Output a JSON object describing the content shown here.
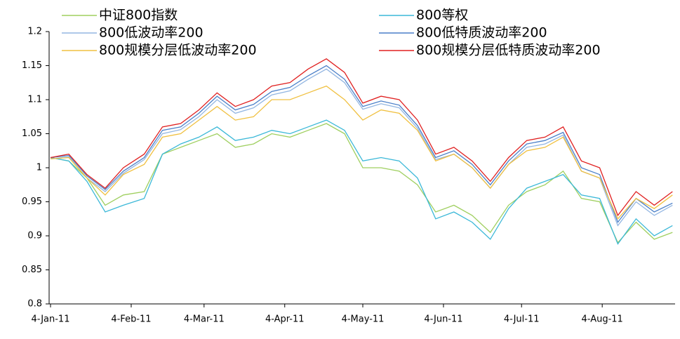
{
  "chart_data": {
    "type": "line",
    "x": [
      "2011-01-04",
      "2011-01-11",
      "2011-01-18",
      "2011-01-25",
      "2011-02-01",
      "2011-02-09",
      "2011-02-16",
      "2011-02-23",
      "2011-03-02",
      "2011-03-09",
      "2011-03-16",
      "2011-03-23",
      "2011-03-30",
      "2011-04-06",
      "2011-04-13",
      "2011-04-20",
      "2011-04-27",
      "2011-05-04",
      "2011-05-11",
      "2011-05-18",
      "2011-05-25",
      "2011-06-01",
      "2011-06-08",
      "2011-06-15",
      "2011-06-22",
      "2011-06-29",
      "2011-07-06",
      "2011-07-13",
      "2011-07-20",
      "2011-07-27",
      "2011-08-03",
      "2011-08-10",
      "2011-08-17",
      "2011-08-24",
      "2011-08-31"
    ],
    "series": [
      {
        "name": "中证800指数",
        "color": "#9fcf5f",
        "values": [
          1.015,
          1.01,
          0.985,
          0.945,
          0.96,
          0.965,
          1.02,
          1.03,
          1.04,
          1.05,
          1.03,
          1.035,
          1.05,
          1.045,
          1.055,
          1.065,
          1.05,
          1.0,
          1.0,
          0.995,
          0.975,
          0.935,
          0.945,
          0.93,
          0.905,
          0.945,
          0.965,
          0.975,
          0.995,
          0.955,
          0.95,
          0.89,
          0.92,
          0.895,
          0.905
        ]
      },
      {
        "name": "800等权",
        "color": "#3bb8d8",
        "values": [
          1.015,
          1.01,
          0.98,
          0.935,
          0.945,
          0.955,
          1.02,
          1.035,
          1.045,
          1.06,
          1.04,
          1.045,
          1.055,
          1.05,
          1.06,
          1.07,
          1.055,
          1.01,
          1.015,
          1.01,
          0.985,
          0.925,
          0.935,
          0.92,
          0.895,
          0.94,
          0.97,
          0.98,
          0.99,
          0.96,
          0.955,
          0.888,
          0.925,
          0.9,
          0.915
        ]
      },
      {
        "name": "800低波动率200",
        "color": "#93b6e2",
        "values": [
          1.013,
          1.016,
          0.985,
          0.965,
          0.992,
          1.012,
          1.05,
          1.056,
          1.075,
          1.1,
          1.08,
          1.088,
          1.107,
          1.113,
          1.13,
          1.145,
          1.125,
          1.086,
          1.094,
          1.088,
          1.058,
          1.012,
          1.02,
          1.0,
          0.97,
          1.005,
          1.03,
          1.035,
          1.048,
          0.995,
          0.985,
          0.915,
          0.95,
          0.93,
          0.945
        ]
      },
      {
        "name": "800低特质波动率200",
        "color": "#4a7fc8",
        "values": [
          1.015,
          1.018,
          0.988,
          0.968,
          0.995,
          1.015,
          1.055,
          1.06,
          1.08,
          1.105,
          1.085,
          1.093,
          1.112,
          1.118,
          1.135,
          1.15,
          1.13,
          1.09,
          1.098,
          1.092,
          1.062,
          1.015,
          1.025,
          1.005,
          0.975,
          1.01,
          1.035,
          1.04,
          1.052,
          1.0,
          0.99,
          0.92,
          0.955,
          0.935,
          0.948
        ]
      },
      {
        "name": "800规模分层低波动率200",
        "color": "#f0c040",
        "values": [
          1.013,
          1.015,
          0.985,
          0.96,
          0.99,
          1.005,
          1.045,
          1.05,
          1.07,
          1.09,
          1.07,
          1.075,
          1.1,
          1.1,
          1.11,
          1.12,
          1.1,
          1.07,
          1.085,
          1.08,
          1.055,
          1.01,
          1.02,
          1.0,
          0.97,
          1.005,
          1.025,
          1.03,
          1.045,
          0.995,
          0.985,
          0.925,
          0.955,
          0.94,
          0.96
        ]
      },
      {
        "name": "800规模分层低特质波动率200",
        "color": "#e02020",
        "values": [
          1.015,
          1.02,
          0.99,
          0.97,
          1.0,
          1.02,
          1.06,
          1.065,
          1.085,
          1.11,
          1.09,
          1.1,
          1.12,
          1.125,
          1.145,
          1.16,
          1.14,
          1.095,
          1.105,
          1.1,
          1.07,
          1.02,
          1.03,
          1.01,
          0.98,
          1.015,
          1.04,
          1.045,
          1.06,
          1.01,
          1.0,
          0.93,
          0.965,
          0.945,
          0.965
        ]
      }
    ],
    "xlim": [
      "2011-01-04",
      "2011-09-01"
    ],
    "xticks": [
      {
        "value": "2011-01-04",
        "label": "4-Jan-11"
      },
      {
        "value": "2011-02-04",
        "label": "4-Feb-11"
      },
      {
        "value": "2011-03-04",
        "label": "4-Mar-11"
      },
      {
        "value": "2011-04-04",
        "label": "4-Apr-11"
      },
      {
        "value": "2011-05-04",
        "label": "4-May-11"
      },
      {
        "value": "2011-06-04",
        "label": "4-Jun-11"
      },
      {
        "value": "2011-07-04",
        "label": "4-Jul-11"
      },
      {
        "value": "2011-08-04",
        "label": "4-Aug-11"
      }
    ],
    "ylim": [
      0.8,
      1.2
    ],
    "yticks": [
      0.8,
      0.85,
      0.9,
      0.95,
      1,
      1.05,
      1.1,
      1.15,
      1.2
    ],
    "grid": false
  }
}
